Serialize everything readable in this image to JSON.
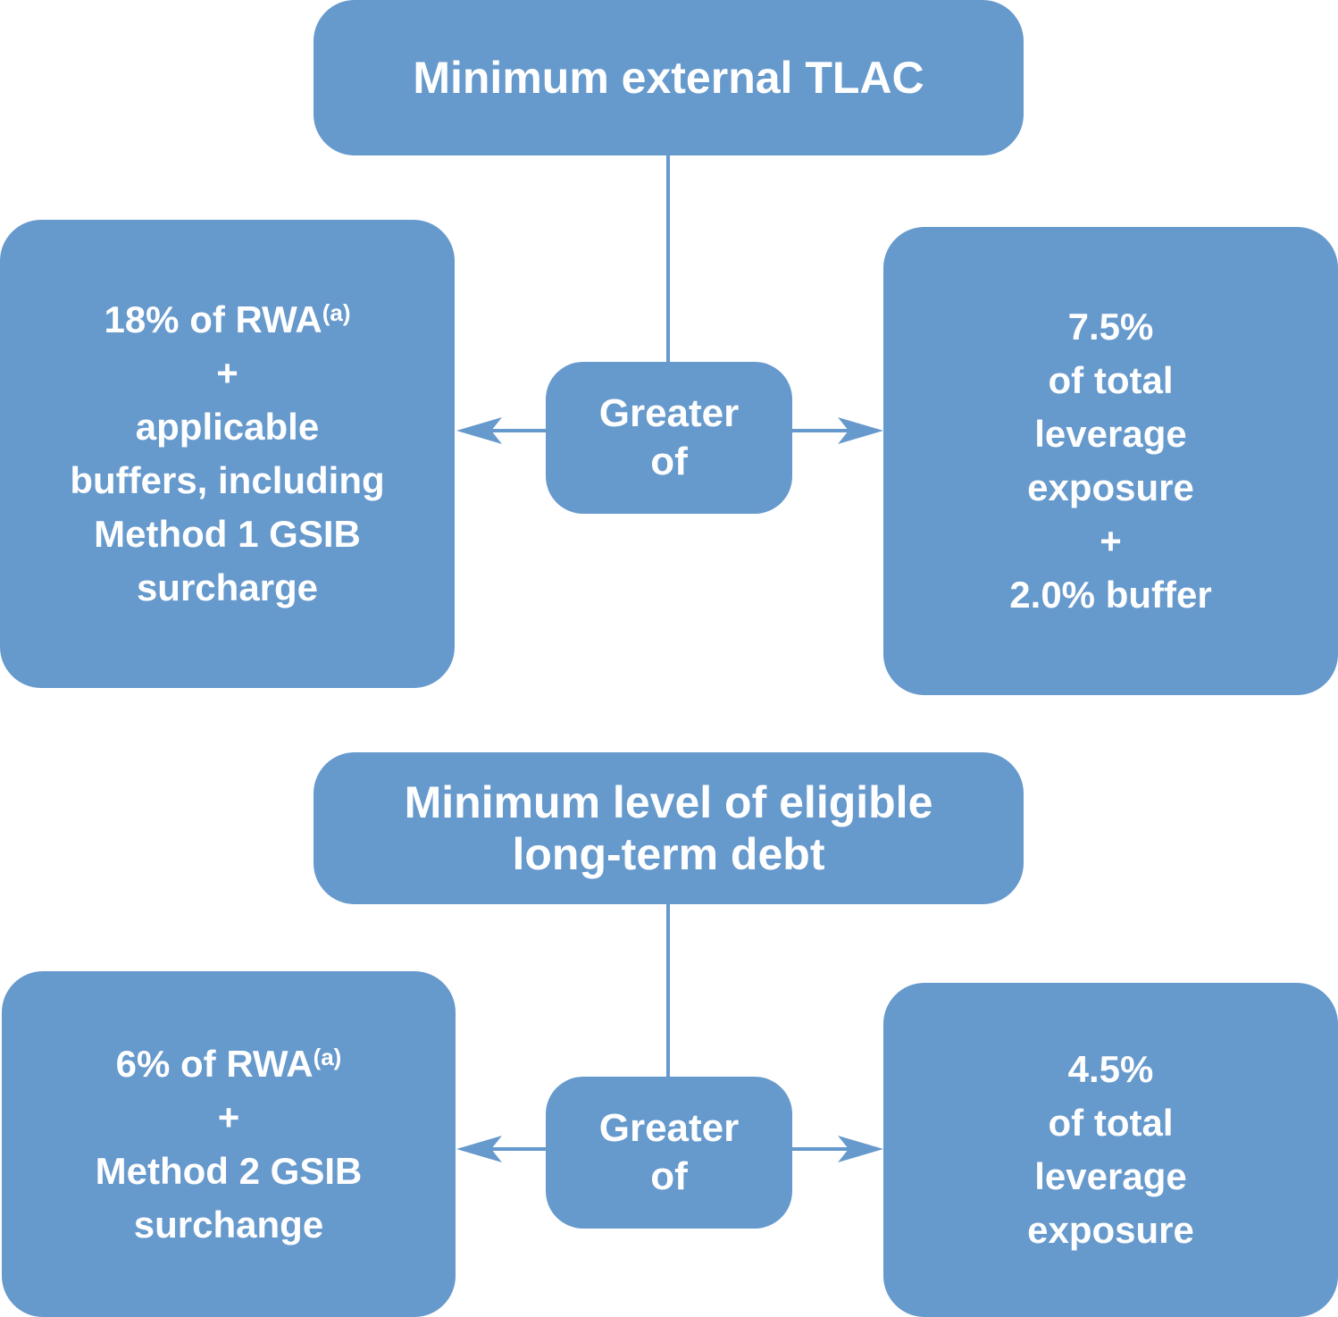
{
  "color": "#6699cc",
  "tlac": {
    "title": "Minimum external TLAC",
    "connector": [
      "Greater",
      "of"
    ],
    "left": {
      "lines": [
        "18% of RWA",
        "+",
        "applicable",
        "buffers, including",
        "Method 1 GSIB",
        "surcharge"
      ],
      "footnote": "(a)"
    },
    "right": {
      "lines": [
        "7.5%",
        "of total",
        "leverage",
        "exposure",
        "+",
        "2.0% buffer"
      ]
    }
  },
  "ltd": {
    "title": [
      "Minimum level of eligible",
      "long-term debt"
    ],
    "connector": [
      "Greater",
      "of"
    ],
    "left": {
      "lines": [
        "6% of RWA",
        "+",
        "Method 2 GSIB",
        "surchange"
      ],
      "footnote": "(a)"
    },
    "right": {
      "lines": [
        "4.5%",
        "of total",
        "leverage",
        "exposure"
      ]
    }
  }
}
